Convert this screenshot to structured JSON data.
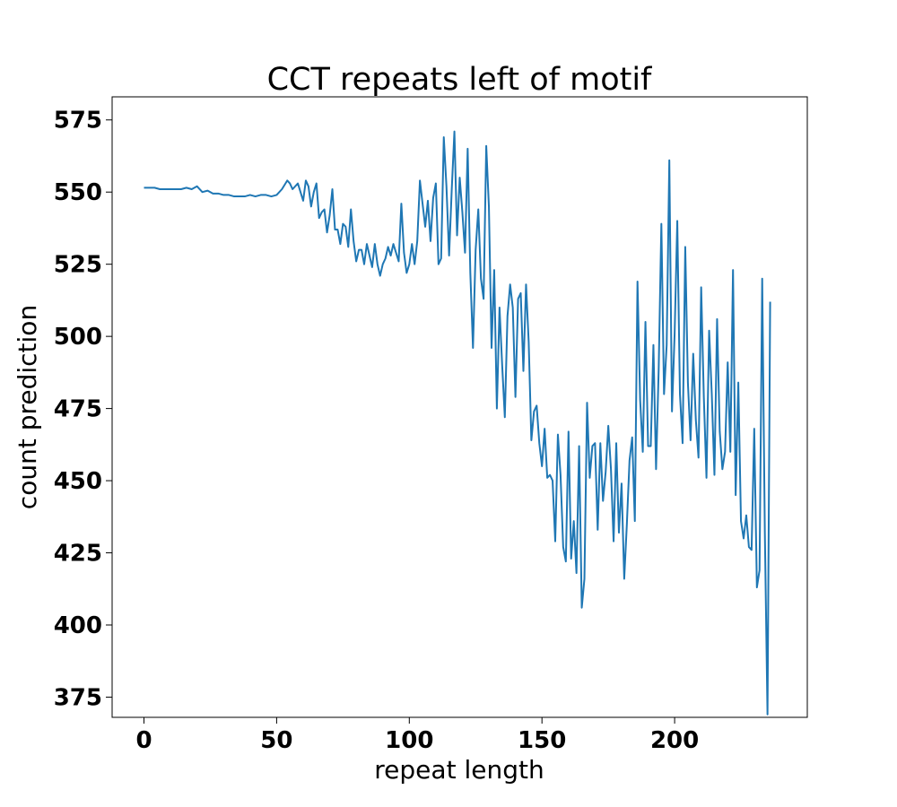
{
  "chart_data": {
    "type": "line",
    "title": "CCT repeats left of motif",
    "xlabel": "repeat length",
    "ylabel": "count prediction",
    "xlim": [
      -12,
      250
    ],
    "ylim": [
      368,
      583
    ],
    "x_ticks": [
      0,
      50,
      100,
      150,
      200
    ],
    "y_ticks": [
      375,
      400,
      425,
      450,
      475,
      500,
      525,
      550,
      575
    ],
    "grid": false,
    "legend": "none",
    "colors": {
      "line": "#1f77b4",
      "axes": "#000000",
      "background": "#ffffff"
    },
    "series": [
      {
        "x": [
          0,
          2,
          4,
          6,
          8,
          10,
          12,
          14,
          16,
          18,
          20,
          22,
          24,
          26,
          28,
          30,
          32,
          34,
          36,
          38,
          40,
          42,
          44,
          46,
          48,
          50,
          52,
          54,
          55,
          56,
          58,
          60,
          61,
          62,
          63,
          64,
          65,
          66,
          67,
          68,
          69,
          70,
          71,
          72,
          73,
          74,
          75,
          76,
          77,
          78,
          79,
          80,
          81,
          82,
          83,
          84,
          85,
          86,
          87,
          88,
          89,
          90,
          91,
          92,
          93,
          94,
          95,
          96,
          97,
          98,
          99,
          100,
          101,
          102,
          103,
          104,
          105,
          106,
          107,
          108,
          109,
          110,
          111,
          112,
          113,
          114,
          115,
          116,
          117,
          118,
          119,
          120,
          121,
          122,
          123,
          124,
          125,
          126,
          127,
          128,
          129,
          130,
          131,
          132,
          133,
          134,
          135,
          136,
          137,
          138,
          139,
          140,
          141,
          142,
          143,
          144,
          145,
          146,
          147,
          148,
          149,
          150,
          151,
          152,
          153,
          154,
          155,
          156,
          157,
          158,
          159,
          160,
          161,
          162,
          163,
          164,
          165,
          166,
          167,
          168,
          169,
          170,
          171,
          172,
          173,
          174,
          175,
          176,
          177,
          178,
          179,
          180,
          181,
          182,
          183,
          184,
          185,
          186,
          187,
          188,
          189,
          190,
          191,
          192,
          193,
          194,
          195,
          196,
          197,
          198,
          199,
          200,
          201,
          202,
          203,
          204,
          205,
          206,
          207,
          208,
          209,
          210,
          211,
          212,
          213,
          214,
          215,
          216,
          217,
          218,
          219,
          220,
          221,
          222,
          223,
          224,
          225,
          226,
          227,
          228,
          229,
          230,
          231,
          232,
          233,
          234,
          235,
          236
        ],
        "y": [
          551.5,
          551.5,
          551.5,
          551,
          551,
          551,
          551,
          551,
          551.5,
          551,
          552,
          550,
          550.5,
          549.5,
          549.5,
          549,
          549,
          548.5,
          548.5,
          548.5,
          549,
          548.5,
          549,
          549,
          548.5,
          549,
          551,
          554,
          553,
          551,
          553,
          547,
          554,
          552,
          545,
          550,
          553,
          541,
          543,
          544,
          536,
          542,
          551,
          537,
          537,
          532,
          539,
          538,
          531,
          544,
          533,
          526,
          530,
          530,
          525,
          532,
          528,
          524,
          532,
          525,
          521,
          525,
          527,
          531,
          528,
          532,
          529,
          526,
          546,
          529,
          522,
          525,
          532,
          525,
          533,
          554,
          546,
          538,
          547,
          533,
          548,
          553,
          525,
          527,
          569,
          552,
          528,
          551,
          571,
          535,
          555,
          543,
          529,
          565,
          522,
          496,
          530,
          544,
          520,
          513,
          566,
          545,
          496,
          523,
          475,
          510,
          490,
          472,
          507,
          518,
          510,
          479,
          513,
          515,
          488,
          518,
          498,
          464,
          474,
          476,
          463,
          455,
          468,
          451,
          452,
          450,
          429,
          466,
          452,
          427,
          422,
          467,
          423,
          436,
          418,
          462,
          406,
          416,
          477,
          451,
          462,
          463,
          433,
          463,
          443,
          453,
          469,
          454,
          429,
          463,
          432,
          449,
          416,
          435,
          457,
          465,
          436,
          519,
          478,
          460,
          505,
          462,
          462,
          497,
          454,
          489,
          539,
          480,
          497,
          561,
          474,
          501,
          540,
          480,
          463,
          531,
          484,
          464,
          494,
          471,
          458,
          517,
          479,
          451,
          502,
          480,
          452,
          506,
          467,
          454,
          460,
          491,
          460,
          523,
          445,
          484,
          436,
          430,
          438,
          427,
          426,
          468,
          413,
          419,
          520,
          432,
          369,
          512
        ]
      }
    ]
  }
}
